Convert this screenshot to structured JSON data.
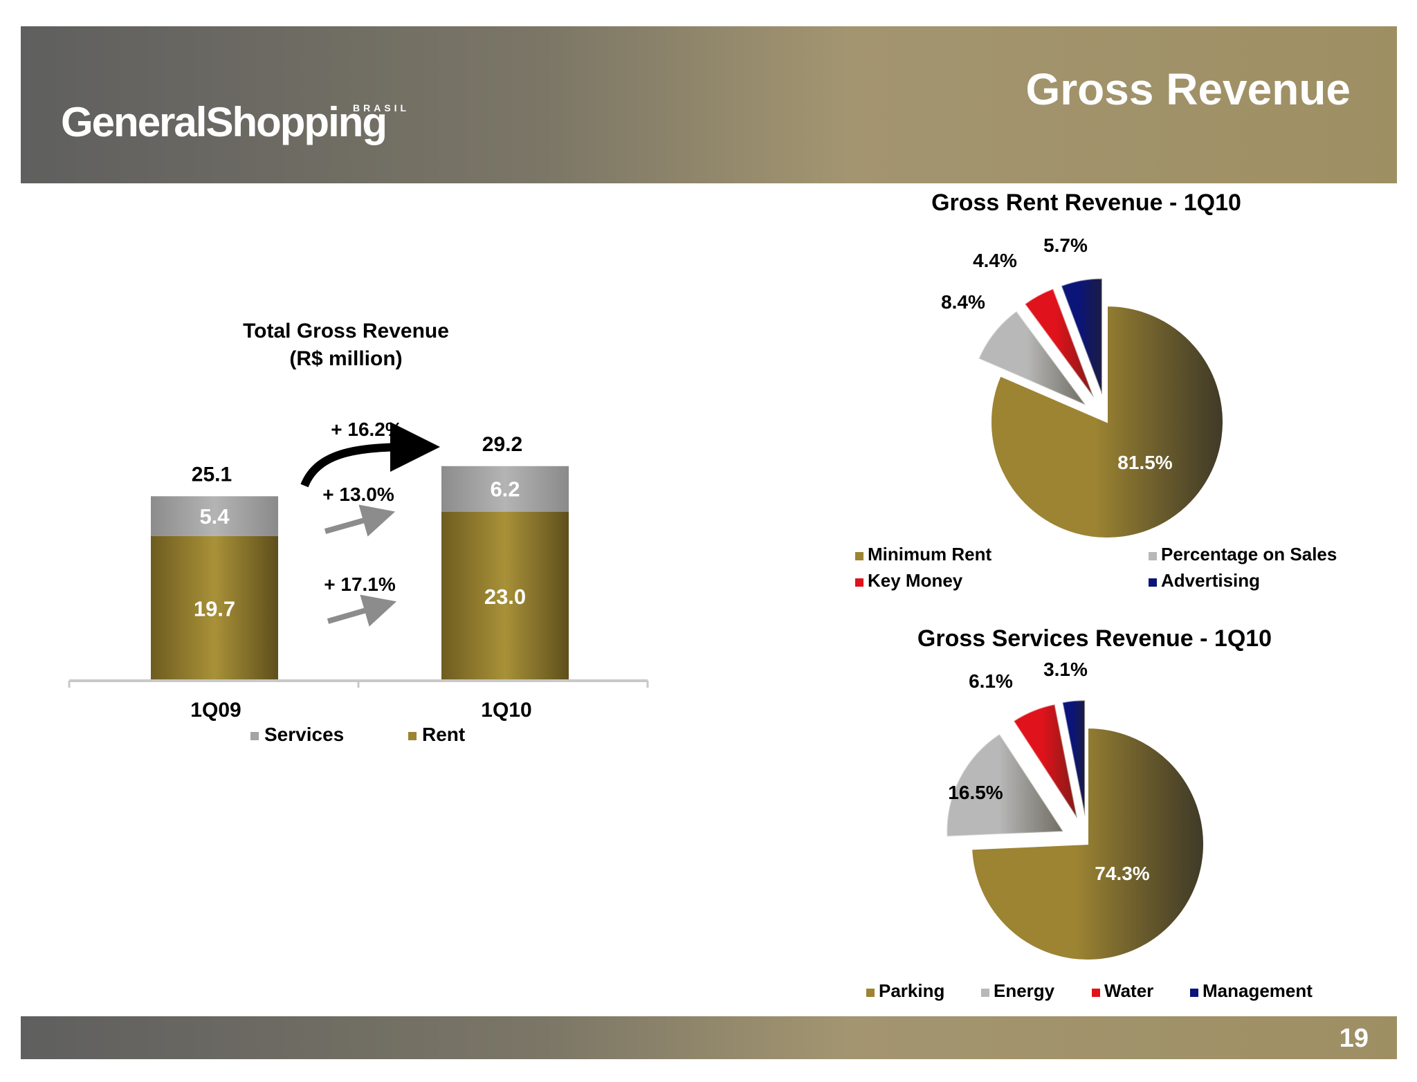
{
  "header": {
    "logo_text": "GeneralShopping",
    "logo_sub": "BRASIL",
    "title": "Gross Revenue"
  },
  "footer": {
    "page_number": "19"
  },
  "colors": {
    "rent": "#9c8432",
    "services": "#a4a4a4",
    "key_money": "#e0121c",
    "advertising": "#0b1478"
  },
  "chart_data": [
    {
      "type": "bar",
      "stacked": true,
      "title": "Total Gross Revenue",
      "subtitle": "(R$ million)",
      "categories": [
        "1Q09",
        "1Q10"
      ],
      "series": [
        {
          "name": "Rent",
          "values": [
            19.7,
            23.0
          ],
          "labels": [
            "19.7",
            "23.0"
          ],
          "color": "#9c8432"
        },
        {
          "name": "Services",
          "values": [
            5.4,
            6.2
          ],
          "labels": [
            "5.4",
            "6.2"
          ],
          "color": "#a4a4a4"
        }
      ],
      "totals": [
        "25.1",
        "29.2"
      ],
      "ylim": [
        0,
        32
      ],
      "legend": [
        "Services",
        "Rent"
      ],
      "legend_position": "bottom",
      "annotations": {
        "total_growth": "+ 16.2%",
        "services_growth": "+ 13.0%",
        "rent_growth": "+ 17.1%"
      }
    },
    {
      "type": "pie",
      "title": "Gross Rent Revenue - 1Q10",
      "slices": [
        {
          "name": "Minimum Rent",
          "value": 81.5,
          "label": "81.5%",
          "color": "#9c8432"
        },
        {
          "name": "Percentage on Sales",
          "value": 8.4,
          "label": "8.4%",
          "color": "#b8b8b8"
        },
        {
          "name": "Key Money",
          "value": 4.4,
          "label": "4.4%",
          "color": "#e0121c"
        },
        {
          "name": "Advertising",
          "value": 5.7,
          "label": "5.7%",
          "color": "#0b1478"
        }
      ],
      "legend": [
        "Minimum Rent",
        "Percentage on Sales",
        "Key Money",
        "Advertising"
      ],
      "legend_position": "bottom"
    },
    {
      "type": "pie",
      "title": "Gross Services Revenue - 1Q10",
      "slices": [
        {
          "name": "Parking",
          "value": 74.3,
          "label": "74.3%",
          "color": "#9c8432"
        },
        {
          "name": "Energy",
          "value": 16.5,
          "label": "16.5%",
          "color": "#b8b8b8"
        },
        {
          "name": "Water",
          "value": 6.1,
          "label": "6.1%",
          "color": "#e0121c"
        },
        {
          "name": "Management",
          "value": 3.1,
          "label": "3.1%",
          "color": "#0b1478"
        }
      ],
      "legend": [
        "Parking",
        "Energy",
        "Water",
        "Management"
      ],
      "legend_position": "bottom"
    }
  ]
}
